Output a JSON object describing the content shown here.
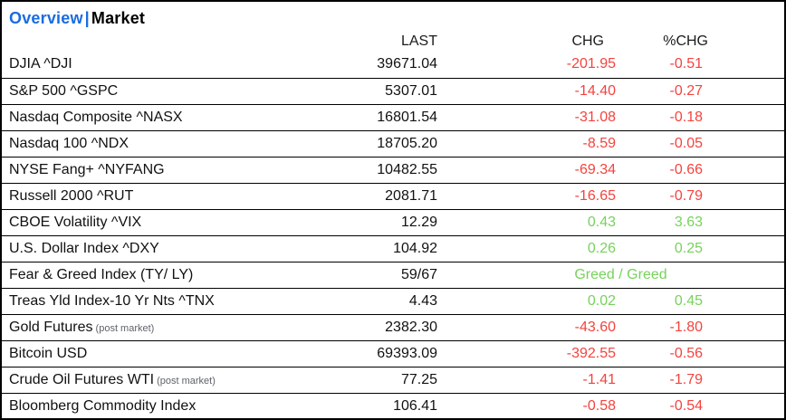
{
  "header": {
    "overview": "Overview",
    "separator": "|",
    "market": "Market"
  },
  "table": {
    "col_last": "LAST",
    "col_chg": "CHG",
    "col_pchg": "%CHG",
    "rows": [
      {
        "name": "DJIA ^DJI",
        "last": "39671.04",
        "chg": "-201.95",
        "pchg": "-0.51",
        "dir": "down"
      },
      {
        "name": "S&P 500 ^GSPC",
        "last": "5307.01",
        "chg": "-14.40",
        "pchg": "-0.27",
        "dir": "down"
      },
      {
        "name": "Nasdaq Composite ^NASX",
        "last": "16801.54",
        "chg": "-31.08",
        "pchg": "-0.18",
        "dir": "down"
      },
      {
        "name": "Nasdaq 100 ^NDX",
        "last": "18705.20",
        "chg": "-8.59",
        "pchg": "-0.05",
        "dir": "down"
      },
      {
        "name": "NYSE Fang+ ^NYFANG",
        "last": "10482.55",
        "chg": "-69.34",
        "pchg": "-0.66",
        "dir": "down"
      },
      {
        "name": "Russell 2000 ^RUT",
        "last": "2081.71",
        "chg": "-16.65",
        "pchg": "-0.79",
        "dir": "down"
      },
      {
        "name": "CBOE Volatility ^VIX",
        "last": "12.29",
        "chg": "0.43",
        "pchg": "3.63",
        "dir": "up"
      },
      {
        "name": "U.S. Dollar Index ^DXY",
        "last": "104.92",
        "chg": "0.26",
        "pchg": "0.25",
        "dir": "up"
      },
      {
        "name": "Fear & Greed Index (TY/ LY)",
        "last": "59/67",
        "span": "Greed / Greed",
        "dir": "up"
      },
      {
        "name": "Treas Yld Index-10 Yr Nts ^TNX",
        "last": "4.43",
        "chg": "0.02",
        "pchg": "0.45",
        "dir": "up"
      },
      {
        "name": "Gold Futures",
        "suffix": "(post market)",
        "last": "2382.30",
        "chg": "-43.60",
        "pchg": "-1.80",
        "dir": "down"
      },
      {
        "name": "Bitcoin USD",
        "last": "69393.09",
        "chg": "-392.55",
        "pchg": "-0.56",
        "dir": "down"
      },
      {
        "name": "Crude Oil Futures WTI",
        "suffix": "(post market)",
        "last": "77.25",
        "chg": "-1.41",
        "pchg": "-1.79",
        "dir": "down"
      },
      {
        "name": "Bloomberg Commodity Index",
        "last": "106.41",
        "chg": "-0.58",
        "pchg": "-0.54",
        "dir": "down"
      }
    ]
  },
  "colors": {
    "up": "#77d25c",
    "down": "#f4433e",
    "accent_blue": "#1a6ce0",
    "muted": "#5f6368",
    "border": "#000000"
  }
}
